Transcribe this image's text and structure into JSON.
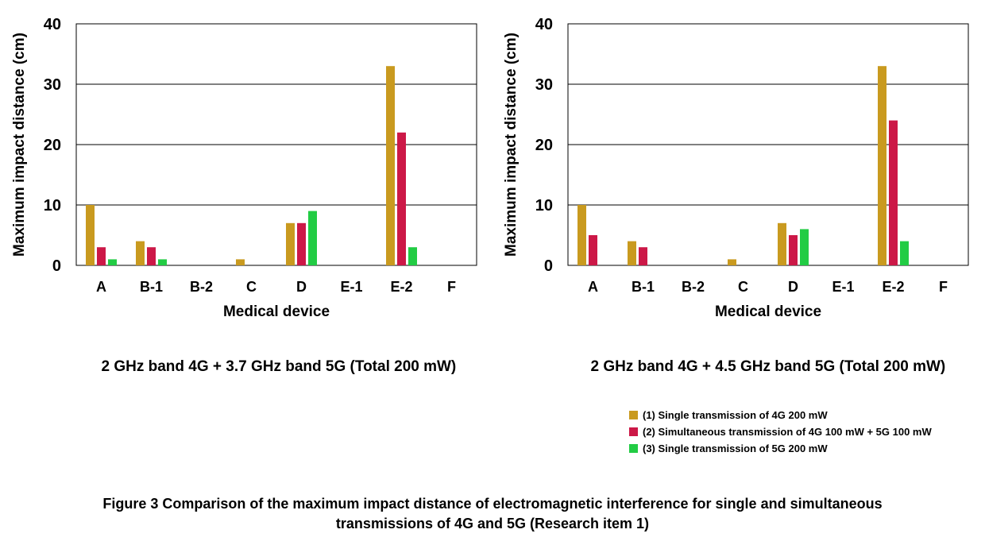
{
  "colors": {
    "series_1": "#C99A1F",
    "series_2": "#CC1847",
    "series_3": "#22CC44",
    "gridline": "#000000"
  },
  "chart_data": [
    {
      "type": "bar",
      "subtitle": "2 GHz band 4G + 3.7 GHz band 5G (Total 200 mW)",
      "xlabel": "Medical device",
      "ylabel": "Maximum impact distance (cm)",
      "ylim": [
        0,
        40
      ],
      "yticks": [
        0,
        10,
        20,
        30,
        40
      ],
      "grid": true,
      "categories": [
        "A",
        "B-1",
        "B-2",
        "C",
        "D",
        "E-1",
        "E-2",
        "F"
      ],
      "series": [
        {
          "name": "(1) Single transmission of 4G 200 mW",
          "values": [
            10,
            4,
            0,
            1,
            7,
            0,
            33,
            0
          ]
        },
        {
          "name": "(2) Simultaneous transmission of 4G 100 mW + 5G 100 mW",
          "values": [
            3,
            3,
            0,
            0,
            7,
            0,
            22,
            0
          ]
        },
        {
          "name": "(3) Single transmission of 5G 200 mW",
          "values": [
            1,
            1,
            0,
            0,
            9,
            0,
            3,
            0
          ]
        }
      ]
    },
    {
      "type": "bar",
      "subtitle": "2 GHz band 4G + 4.5 GHz band 5G (Total 200 mW)",
      "xlabel": "Medical device",
      "ylabel": "Maximum impact distance (cm)",
      "ylim": [
        0,
        40
      ],
      "yticks": [
        0,
        10,
        20,
        30,
        40
      ],
      "grid": true,
      "categories": [
        "A",
        "B-1",
        "B-2",
        "C",
        "D",
        "E-1",
        "E-2",
        "F"
      ],
      "series": [
        {
          "name": "(1) Single transmission of 4G 200 mW",
          "values": [
            10,
            4,
            0,
            1,
            7,
            0,
            33,
            0
          ]
        },
        {
          "name": "(2) Simultaneous transmission of 4G 100 mW + 5G 100 mW",
          "values": [
            5,
            3,
            0,
            0,
            5,
            0,
            24,
            0
          ]
        },
        {
          "name": "(3) Single transmission of 5G 200 mW",
          "values": [
            0,
            0,
            0,
            0,
            6,
            0,
            4,
            0
          ]
        }
      ]
    }
  ],
  "legend": [
    {
      "label": "(1) Single transmission of 4G 200 mW"
    },
    {
      "label": "(2) Simultaneous transmission of 4G 100 mW + 5G 100 mW"
    },
    {
      "label": "(3) Single transmission of 5G 200 mW"
    }
  ],
  "caption": {
    "line1": "Figure 3  Comparison of the maximum impact distance of electromagnetic interference for single and simultaneous",
    "line2": "transmissions of 4G and 5G (Research item 1)"
  }
}
